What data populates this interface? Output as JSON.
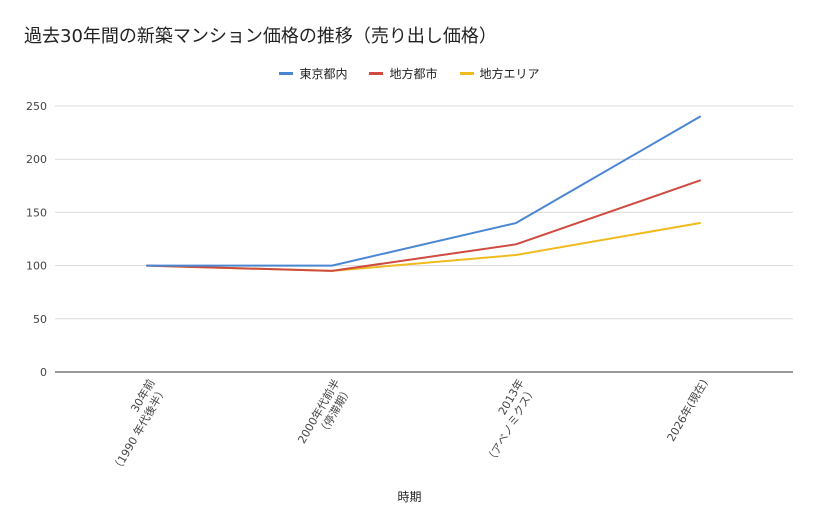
{
  "chart_data": {
    "type": "line",
    "title": "過去30年間の新築マンション価格の推移（売り出し価格）",
    "xlabel": "時期",
    "ylabel": "",
    "ylim": [
      0,
      250
    ],
    "yticks": [
      0,
      50,
      100,
      150,
      200,
      250
    ],
    "grid": true,
    "legend_position": "top-center",
    "categories": [
      [
        "30年前",
        "（1990 年代後半）"
      ],
      [
        "2000年代前半",
        "（停滞期）"
      ],
      [
        "2013年",
        "（アベノミクス）"
      ],
      [
        "2026年(現在)"
      ]
    ],
    "series": [
      {
        "name": "東京都内",
        "color": "#4a86d4",
        "values": [
          100,
          100,
          140,
          240
        ]
      },
      {
        "name": "地方都市",
        "color": "#cf4b3f",
        "values": [
          100,
          95,
          120,
          180
        ]
      },
      {
        "name": "地方エリア",
        "color": "#efbb1e",
        "values": [
          100,
          95,
          110,
          140
        ]
      }
    ]
  }
}
